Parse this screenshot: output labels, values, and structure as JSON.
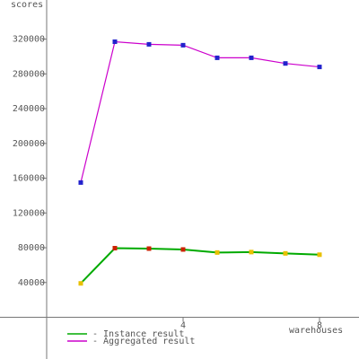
{
  "chart_data": {
    "type": "line",
    "y_label": "scores",
    "x_label": "warehouses",
    "x": [
      1,
      2,
      3,
      4,
      5,
      6,
      7,
      8
    ],
    "series": [
      {
        "name": "- Instance result",
        "color": "#00aa00",
        "values": [
          39000,
          79500,
          79000,
          78000,
          74500,
          75000,
          73500,
          72000
        ],
        "marker_colors": [
          "#e8c000",
          "#cc2200",
          "#cc2200",
          "#cc2200",
          "#e8c000",
          "#e8c000",
          "#e8c000",
          "#e8c000"
        ]
      },
      {
        "name": "- Aggregated result",
        "color": "#cc00cc",
        "values": [
          155000,
          317000,
          314000,
          313000,
          298500,
          298500,
          292000,
          288000
        ],
        "marker_colors": [
          "#2222cc",
          "#2222cc",
          "#2222cc",
          "#2222cc",
          "#2222cc",
          "#2222cc",
          "#2222cc",
          "#2222cc"
        ]
      }
    ],
    "xlim": [
      -1.368,
      9.158
    ],
    "xticks": [
      4,
      8
    ],
    "ylim": [
      -48000,
      365000
    ],
    "yticks": [
      40000,
      80000,
      120000,
      160000,
      200000,
      240000,
      280000,
      320000
    ]
  }
}
